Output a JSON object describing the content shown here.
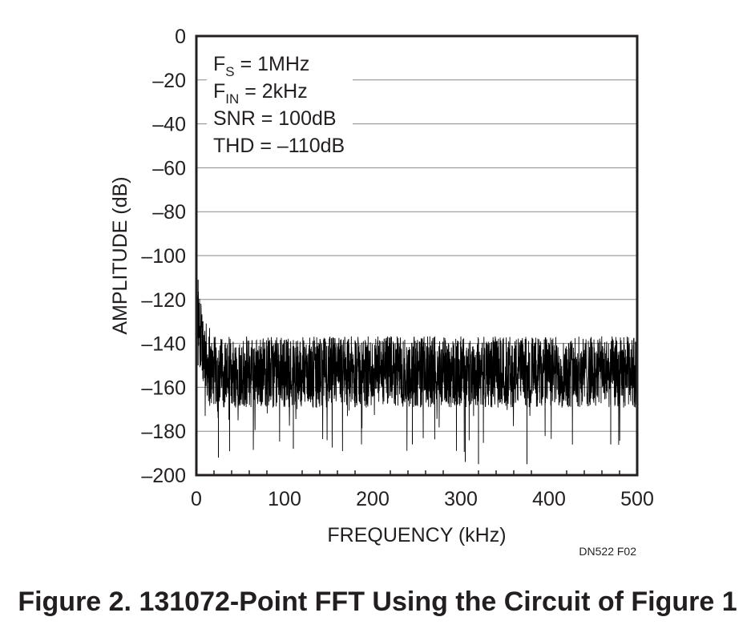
{
  "chart_data": {
    "type": "line",
    "title": "",
    "xlabel": "FREQUENCY (kHz)",
    "ylabel": "AMPLITUDE (dB)",
    "xlim": [
      0,
      500
    ],
    "ylim": [
      -200,
      0
    ],
    "xticks": [
      "0",
      "100",
      "200",
      "300",
      "400",
      "500"
    ],
    "yticks": [
      "0",
      "–20",
      "–40",
      "–60",
      "–80",
      "–100",
      "–120",
      "–140",
      "–160",
      "–180",
      "–200"
    ],
    "grid": true,
    "series": [
      {
        "color": "#000000",
        "description_points": [
          [
            0,
            -122
          ],
          [
            1,
            -130
          ],
          [
            2,
            -112
          ],
          [
            3,
            -128
          ],
          [
            5,
            -140
          ],
          [
            10,
            -146
          ],
          [
            15,
            -150
          ],
          [
            20,
            -150
          ],
          [
            50,
            -152
          ],
          [
            100,
            -152
          ],
          [
            150,
            -152
          ],
          [
            200,
            -152
          ],
          [
            250,
            -152
          ],
          [
            300,
            -152
          ],
          [
            350,
            -152
          ],
          [
            400,
            -152
          ],
          [
            450,
            -152
          ],
          [
            500,
            -152
          ]
        ],
        "noise_floor_band": [
          -165,
          -140
        ],
        "spikes": [
          [
            2,
            -111
          ],
          [
            5,
            -131
          ],
          [
            15,
            -133
          ],
          [
            25,
            -192
          ],
          [
            110,
            -188
          ],
          [
            245,
            -186
          ],
          [
            305,
            -194
          ],
          [
            320,
            -195
          ],
          [
            375,
            -195
          ],
          [
            470,
            -186
          ]
        ]
      }
    ],
    "annotations": [
      {
        "main": "F",
        "sub": "S",
        "rest": " = 1MHz"
      },
      {
        "main": "F",
        "sub": "IN",
        "rest": " = 2kHz"
      },
      {
        "main": "SNR = 100dB",
        "sub": "",
        "rest": ""
      },
      {
        "main": "THD = –110dB",
        "sub": "",
        "rest": ""
      }
    ]
  },
  "figure_code": "DN522 F02",
  "caption": "Figure 2. 131072-Point FFT Using the Circuit of Figure 1"
}
